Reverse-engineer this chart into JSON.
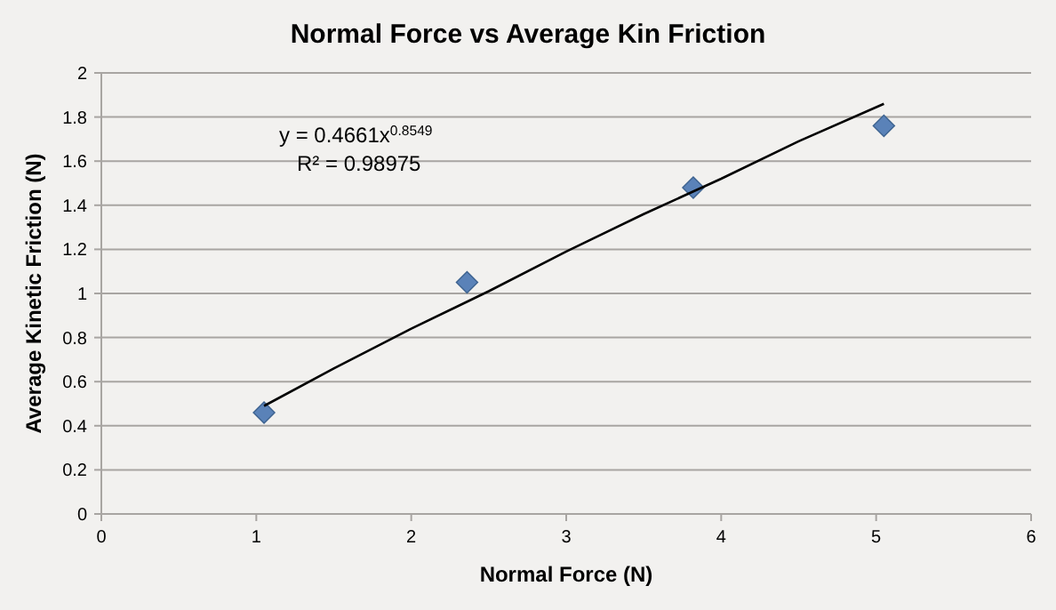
{
  "chart_data": {
    "type": "scatter",
    "title": "Normal Force vs Average Kin Friction",
    "xlabel": "Normal Force (N)",
    "ylabel": "Average Kinetic Friction (N)",
    "xlim": [
      0,
      6
    ],
    "xticks": [
      0,
      1,
      2,
      3,
      4,
      5,
      6
    ],
    "ylim": [
      0,
      2
    ],
    "yticks": [
      0,
      0.2,
      0.4,
      0.6,
      0.8,
      1,
      1.2,
      1.4,
      1.6,
      1.8,
      2
    ],
    "grid": "y",
    "marker": "diamond",
    "annotations": [
      "y = 0.4661x$^{0.8549}$",
      "R² = 0.98975"
    ],
    "series": [
      {
        "color": "#5a82b8",
        "x": [
          1.05,
          2.36,
          3.82,
          5.05
        ],
        "values": [
          0.46,
          1.05,
          1.48,
          1.76
        ]
      },
      {
        "type": "line",
        "color": "#000000",
        "marker": "none",
        "x": [
          1.05,
          1.5,
          2,
          2.5,
          3,
          3.5,
          4,
          4.5,
          5.05
        ],
        "values": [
          0.49,
          0.66,
          0.84,
          1.01,
          1.19,
          1.36,
          1.52,
          1.69,
          1.86
        ]
      }
    ]
  }
}
